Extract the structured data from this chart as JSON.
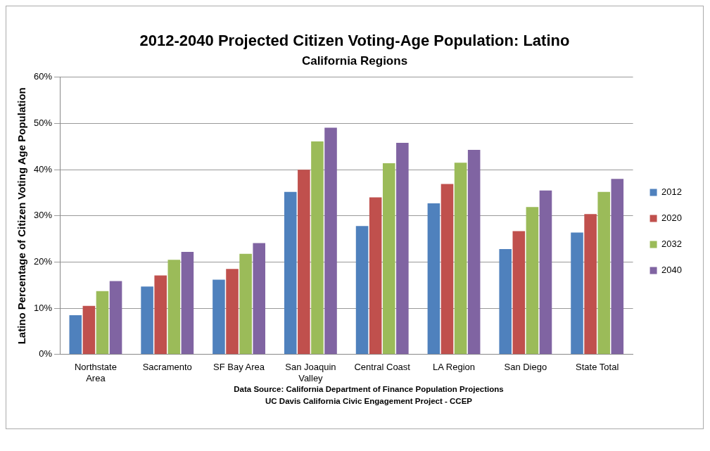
{
  "chart_data": {
    "type": "bar",
    "title": "2012-2040 Projected Citizen Voting-Age Population: Latino",
    "subtitle": "California Regions",
    "ylabel": "Latino Percentage of Citizen Voting Age Population",
    "categories": [
      "Northstate Area",
      "Sacramento",
      "SF Bay Area",
      "San Joaquin Valley",
      "Central Coast",
      "LA Region",
      "San Diego",
      "State Total"
    ],
    "series": [
      {
        "name": "2012",
        "color": "#4f81bd",
        "values": [
          8.5,
          14.7,
          16.2,
          35.2,
          27.8,
          32.7,
          22.8,
          26.4
        ]
      },
      {
        "name": "2020",
        "color": "#c0504d",
        "values": [
          10.5,
          17.1,
          18.5,
          40.0,
          34.0,
          36.9,
          26.7,
          30.4
        ]
      },
      {
        "name": "2032",
        "color": "#9bbb59",
        "values": [
          13.7,
          20.5,
          21.8,
          46.1,
          41.4,
          41.5,
          31.9,
          35.2
        ]
      },
      {
        "name": "2040",
        "color": "#8064a2",
        "values": [
          15.9,
          22.2,
          24.1,
          49.1,
          45.8,
          44.3,
          35.5,
          38.0
        ]
      }
    ],
    "ylim": [
      0,
      60
    ],
    "yticks": [
      {
        "value": 0,
        "label": "0%"
      },
      {
        "value": 10,
        "label": "10%"
      },
      {
        "value": 20,
        "label": "20%"
      },
      {
        "value": 30,
        "label": "30%"
      },
      {
        "value": 40,
        "label": "40%"
      },
      {
        "value": 50,
        "label": "50%"
      },
      {
        "value": 60,
        "label": "60%"
      }
    ],
    "grid": "y",
    "legend": "right",
    "annotations": [
      "Data Source: California Department of Finance Population Projections",
      "UC Davis California Civic Engagement Project - CCEP"
    ]
  }
}
